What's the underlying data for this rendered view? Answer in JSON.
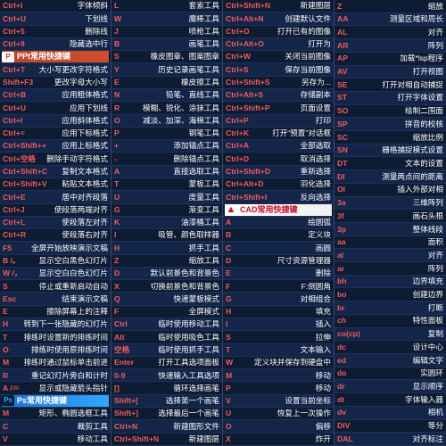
{
  "columns": [
    {
      "rows": [
        {
          "key": "Ctrl+I",
          "desc": "字体倾斜"
        },
        {
          "key": "Ctrl+U",
          "desc": "下划线"
        },
        {
          "key": "Ctrl+5",
          "desc": "删除线"
        },
        {
          "key": "Ctrl+9",
          "desc": "隐藏选中行"
        },
        {
          "header": "PPt常用快捷键",
          "theme": "ppt",
          "logo": "P"
        },
        {
          "key": "Ctrl+T",
          "desc": "大小写更改字符格式"
        },
        {
          "key": "Shift+F3",
          "desc": "更改字母大小写"
        },
        {
          "key": "Ctrl+B",
          "desc": "应用粗体格式"
        },
        {
          "key": "Ctrl+U",
          "desc": "应用下划线"
        },
        {
          "key": "Ctrl+I",
          "desc": "应用斜体格式"
        },
        {
          "key": "Ctrl+=",
          "desc": "应用下标格式"
        },
        {
          "key": "Ctrl+Shift++",
          "desc": "应用上标格式"
        },
        {
          "key": "Ctrl+空格",
          "desc": "删除手动字符格式"
        },
        {
          "key": "Ctrl+Shift+C",
          "desc": "复制文本格式"
        },
        {
          "key": "Ctrl+Shift+V",
          "desc": "粘贴文本格式"
        },
        {
          "key": "Ctrl+E",
          "desc": "居中对齐段落"
        },
        {
          "key": "Ctrl+J",
          "desc": "使段落两端对齐"
        },
        {
          "key": "Ctrl+L",
          "desc": "使段落左对齐"
        },
        {
          "key": "Ctrl+R",
          "desc": "使段落右对齐"
        },
        {
          "key": "F5",
          "desc": "全屏开始放映演示文稿"
        },
        {
          "key": "B /。",
          "desc": "显示空白黑色幻灯片"
        },
        {
          "key": "W /，",
          "desc": "显示空白白色幻灯片"
        },
        {
          "key": "S",
          "desc": "停止或重新启动自动"
        },
        {
          "key": "Esc",
          "desc": "结束演示文稿"
        },
        {
          "key": "E",
          "desc": "擦除屏幕上的注释"
        },
        {
          "key": "H",
          "desc": "转到下一张隐藏的幻灯片"
        },
        {
          "key": "T",
          "desc": "排练时设置新的排练时间"
        },
        {
          "key": "O",
          "desc": "排练时使用原排练时间"
        },
        {
          "key": "M",
          "desc": "排练时通过鼠标单击前进"
        },
        {
          "key": "R",
          "desc": "重记幻灯片旁白和计时"
        },
        {
          "key": "A /＝",
          "desc": "显示或隐藏箭头指针"
        },
        {
          "header": "Ps常用快捷键",
          "theme": "ps",
          "logo": "Ps"
        },
        {
          "key": "M",
          "desc": "矩形、椭圆选框工具"
        },
        {
          "key": "C",
          "desc": "裁剪工具"
        },
        {
          "key": "V",
          "desc": "移动工具"
        }
      ]
    },
    {
      "rows": [
        {
          "key": "L",
          "desc": "套索工具"
        },
        {
          "key": "W",
          "desc": "魔棒工具"
        },
        {
          "key": "J",
          "desc": "喷枪工具"
        },
        {
          "key": "B",
          "desc": "画笔工具"
        },
        {
          "key": "S",
          "desc": "橡皮图章、图案图章"
        },
        {
          "key": "Y",
          "desc": "历史记录画笔工具"
        },
        {
          "key": "E",
          "desc": "橡皮擦工具"
        },
        {
          "key": "N",
          "desc": "铅笔、直线工具"
        },
        {
          "key": "R",
          "desc": "模糊、锐化、涂抹工具"
        },
        {
          "key": "O",
          "desc": "减淡、加深、海棉工具"
        },
        {
          "key": "P",
          "desc": "钢笔工具"
        },
        {
          "key": "+",
          "desc": "添加锚点工具"
        },
        {
          "key": "-",
          "desc": "删除锚点工具"
        },
        {
          "key": "A",
          "desc": "直接选取工具"
        },
        {
          "key": "T",
          "desc": "蒙板工具"
        },
        {
          "key": "U",
          "desc": "度量工具"
        },
        {
          "key": "G",
          "desc": "渐变工具"
        },
        {
          "key": "K",
          "desc": "油漆桶工具"
        },
        {
          "key": "I",
          "desc": "吸管、颜色取样器"
        },
        {
          "key": "H",
          "desc": "抓手工具"
        },
        {
          "key": "Z",
          "desc": "缩放工具"
        },
        {
          "key": "D",
          "desc": "默认前景色和背景色"
        },
        {
          "key": "X",
          "desc": "切换前景色和背景色"
        },
        {
          "key": "Q",
          "desc": "快速蒙板模式"
        },
        {
          "key": "F",
          "desc": "全屏模式"
        },
        {
          "key": "Ctrl",
          "desc": "临时使用移动工具"
        },
        {
          "key": "Alt",
          "desc": "临时使用吸色工具"
        },
        {
          "key": "空格",
          "desc": "临时使用抓手工具"
        },
        {
          "key": "Enter",
          "desc": "打开工具选项面板"
        },
        {
          "key": "0-9",
          "desc": "快速输入工具选项"
        },
        {
          "key": "[]",
          "desc": "循环选择画笔"
        },
        {
          "key": "Shift+[",
          "desc": "选择第一个画笔"
        },
        {
          "key": "Shift+]",
          "desc": "选择最后一个画笔"
        },
        {
          "key": "Ctrl+N",
          "desc": "新建图形文件"
        },
        {
          "key": "Ctrl+Shift+N",
          "desc": "新建图层"
        }
      ]
    },
    {
      "rows": [
        {
          "key": "Ctrl+Shift+N",
          "desc": "新建图层"
        },
        {
          "key": "Ctrl+Alt+N",
          "desc": "创建默认文件"
        },
        {
          "key": "Ctrl+O",
          "desc": "打开已有的图像"
        },
        {
          "key": "Ctrl+Alt+O",
          "desc": "打开为"
        },
        {
          "key": "Ctrl+W",
          "desc": "关闭当前图像"
        },
        {
          "key": "Ctrl+S",
          "desc": "保存当前图像"
        },
        {
          "key": "Ctrl+Shift+S",
          "desc": "另存为..."
        },
        {
          "key": "Ctrl+Alt+S",
          "desc": "存储副本"
        },
        {
          "key": "Ctrl+Shift+P",
          "desc": "页面设置"
        },
        {
          "key": "Ctrl+P",
          "desc": "打印"
        },
        {
          "key": "Ctrl+K",
          "desc": "打开“预置”对话框"
        },
        {
          "key": "Ctrl+A",
          "desc": "全部选取"
        },
        {
          "key": "Ctrl+D",
          "desc": "取消选择"
        },
        {
          "key": "Ctrl+Shift+D",
          "desc": "重新选择"
        },
        {
          "key": "Ctrl+Alt+D",
          "desc": "羽化选择"
        },
        {
          "key": "Ctrl+Shift+I",
          "desc": "反向选择"
        },
        {
          "header": "CAD常用快捷键",
          "theme": "cad",
          "logo": "▲"
        },
        {
          "key": "A",
          "desc": "绘圆弧"
        },
        {
          "key": "B",
          "desc": "定义块"
        },
        {
          "key": "C",
          "desc": "画圆"
        },
        {
          "key": "D",
          "desc": "尺寸资源管理器"
        },
        {
          "key": "E",
          "desc": "删除"
        },
        {
          "key": "F",
          "desc": "F:倒圆角"
        },
        {
          "key": "G",
          "desc": "对相组合"
        },
        {
          "key": "H",
          "desc": "填充"
        },
        {
          "key": "I",
          "desc": "插入"
        },
        {
          "key": "S",
          "desc": "拉伸"
        },
        {
          "key": "T",
          "desc": "文本输入"
        },
        {
          "key": "W",
          "desc": "定义块并保存到硬盘中"
        },
        {
          "key": "M",
          "desc": "移动"
        },
        {
          "key": "P",
          "desc": "移动"
        },
        {
          "key": "V",
          "desc": "设置当前坐标"
        },
        {
          "key": "U",
          "desc": "恢复上一次操作"
        },
        {
          "key": "O",
          "desc": "偏移"
        },
        {
          "key": "X",
          "desc": "炸开"
        }
      ]
    },
    {
      "rows": [
        {
          "key": "Z",
          "desc": "缩放"
        },
        {
          "key": "AA",
          "desc": "测量区域和周长"
        },
        {
          "key": "AL",
          "desc": "对齐"
        },
        {
          "key": "AR",
          "desc": "阵列"
        },
        {
          "key": "AP",
          "desc": "加载*lsp程序"
        },
        {
          "key": "AV",
          "desc": "打开视图"
        },
        {
          "key": "SE",
          "desc": "打开对相自动捕捉"
        },
        {
          "key": "ST",
          "desc": "打开字体设置"
        },
        {
          "key": "SO",
          "desc": "绘制二围面"
        },
        {
          "key": "SP",
          "desc": "拼音的校核"
        },
        {
          "key": "SC",
          "desc": "缩放比例"
        },
        {
          "key": "SN",
          "desc": "栅格捕捉模式设置"
        },
        {
          "key": "DT",
          "desc": "文本的设置"
        },
        {
          "key": "DI",
          "desc": "测量两点间的距离"
        },
        {
          "key": "OI",
          "desc": "插入外部对相"
        },
        {
          "key": "3a",
          "desc": "三维阵列"
        },
        {
          "key": "3f",
          "desc": "画石头根"
        },
        {
          "key": "3p",
          "desc": "整体线段"
        },
        {
          "key": "aa",
          "desc": "面积"
        },
        {
          "key": "al",
          "desc": "对齐"
        },
        {
          "key": "ar",
          "desc": "阵列"
        },
        {
          "key": "bh",
          "desc": "边界填充"
        },
        {
          "key": "bo",
          "desc": "创建边界"
        },
        {
          "key": "br",
          "desc": "打断"
        },
        {
          "key": "ch",
          "desc": "特性面板"
        },
        {
          "key": "co(cp)",
          "desc": "复制"
        },
        {
          "key": "dc",
          "desc": "设计中心"
        },
        {
          "key": "ed",
          "desc": "编辑文字"
        },
        {
          "key": "do",
          "desc": "实圆环"
        },
        {
          "key": "dr",
          "desc": "显示顺序"
        },
        {
          "key": "dt",
          "desc": "字体输入器"
        },
        {
          "key": "dv",
          "desc": "相机"
        },
        {
          "key": "DIV",
          "desc": "等分"
        },
        {
          "key": "DAL",
          "desc": "对齐标注"
        }
      ]
    }
  ]
}
